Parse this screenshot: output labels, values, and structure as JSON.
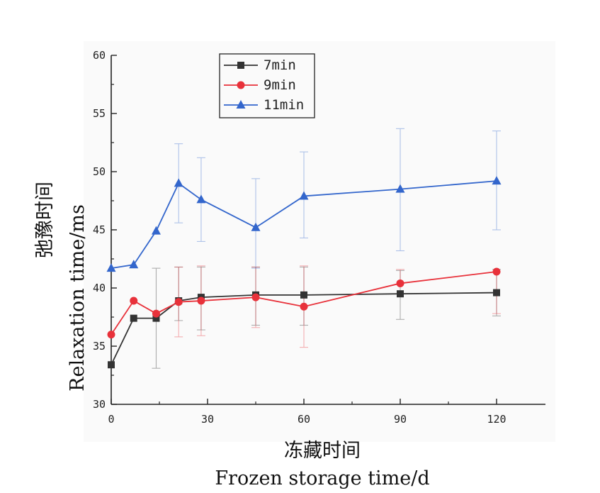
{
  "chart_data": {
    "type": "line",
    "xlabel_cn": "冻藏时间",
    "xlabel_en": "Frozen storage time/d",
    "ylabel_cn": "弛豫时间",
    "ylabel_en": "Relaxation time/ms",
    "xlim": [
      0,
      134
    ],
    "ylim": [
      30,
      60
    ],
    "x_ticks": [
      0,
      30,
      60,
      90,
      120
    ],
    "y_ticks": [
      30,
      35,
      40,
      45,
      50,
      55,
      60
    ],
    "legend_position": "top-left",
    "grid": false,
    "x": [
      0,
      7,
      14,
      21,
      28,
      45,
      60,
      90,
      120
    ],
    "series": [
      {
        "name": "7min",
        "color": "#333333",
        "marker": "square",
        "values": [
          33.4,
          37.4,
          37.4,
          38.9,
          39.2,
          39.4,
          39.4,
          39.5,
          39.6
        ],
        "err_lo": [
          0,
          0,
          4.3,
          1.7,
          2.8,
          2.6,
          2.6,
          2.2,
          2.0
        ],
        "err_hi": [
          0,
          0,
          4.3,
          2.9,
          2.6,
          2.4,
          2.4,
          2.0,
          2.0
        ]
      },
      {
        "name": "9min",
        "color": "#e8313a",
        "marker": "circle",
        "values": [
          36.0,
          38.9,
          37.8,
          38.8,
          38.9,
          39.2,
          38.4,
          40.4,
          41.4
        ],
        "err_lo": [
          0,
          0,
          0,
          3.0,
          3.0,
          2.6,
          3.5,
          0,
          3.6
        ],
        "err_hi": [
          0,
          0,
          0,
          3.0,
          3.0,
          2.6,
          3.5,
          1.2,
          0
        ]
      },
      {
        "name": "11min",
        "color": "#3366cc",
        "marker": "triangle",
        "values": [
          41.7,
          42.0,
          44.9,
          49.0,
          47.6,
          45.2,
          47.9,
          48.5,
          49.2
        ],
        "err_lo": [
          0,
          0,
          0,
          3.4,
          3.6,
          3.5,
          3.6,
          5.3,
          4.2
        ],
        "err_hi": [
          0,
          0,
          0,
          3.4,
          3.6,
          4.2,
          3.8,
          5.2,
          4.3
        ]
      }
    ]
  }
}
